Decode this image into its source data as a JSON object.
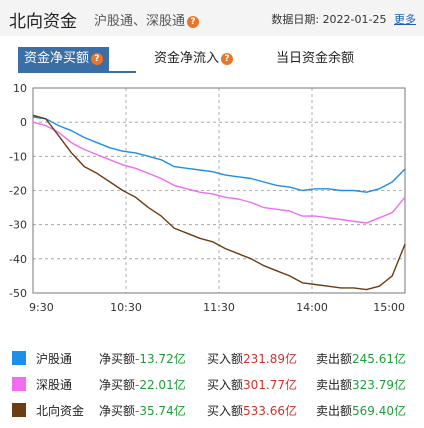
{
  "header": {
    "title": "北向资金",
    "subtitle": "沪股通、深股通",
    "date_label": "数据日期:",
    "date": "2022-01-25",
    "more": "更多"
  },
  "tabs": [
    {
      "label": "资金净买额",
      "active": true
    },
    {
      "label": "资金净流入",
      "active": false
    },
    {
      "label": "当日资金余额",
      "active": false
    }
  ],
  "colors": {
    "shanghai": "#1e8ee8",
    "shenzhen": "#f06cf0",
    "northbound": "#6b3d12",
    "active_tab": "#3a6ea5"
  },
  "chart_data": {
    "type": "line",
    "x_ticks": [
      "9:30",
      "10:30",
      "11:30",
      "14:00",
      "15:00"
    ],
    "y_ticks": [
      10,
      0,
      -10,
      -20,
      -30,
      -40,
      -50
    ],
    "ylim": [
      -50,
      10
    ],
    "unit": "亿",
    "series": [
      {
        "name": "沪股通",
        "color": "#1e8ee8",
        "values": [
          1.5,
          1.0,
          -1.0,
          -2.5,
          -4.5,
          -6.0,
          -7.5,
          -8.5,
          -9.0,
          -10.0,
          -11.0,
          -13.0,
          -13.5,
          -14.0,
          -14.5,
          -15.5,
          -16.0,
          -16.5,
          -17.5,
          -18.5,
          -19.0,
          -20.0,
          -19.5,
          -19.5,
          -20.0,
          -20.0,
          -20.5,
          -19.5,
          -17.5,
          -13.7
        ]
      },
      {
        "name": "深股通",
        "color": "#f06cf0",
        "values": [
          0.0,
          -1.0,
          -3.0,
          -6.0,
          -8.0,
          -9.5,
          -11.0,
          -12.5,
          -13.5,
          -15.0,
          -16.5,
          -18.5,
          -19.5,
          -20.5,
          -21.0,
          -22.0,
          -22.5,
          -23.5,
          -25.0,
          -25.5,
          -26.0,
          -27.5,
          -27.5,
          -28.0,
          -28.5,
          -29.0,
          -29.5,
          -28.0,
          -26.5,
          -22.0
        ]
      },
      {
        "name": "北向资金",
        "color": "#6b3d12",
        "values": [
          2.0,
          1.0,
          -4.0,
          -9.0,
          -13.0,
          -15.0,
          -17.5,
          -20.0,
          -22.0,
          -25.0,
          -27.5,
          -31.0,
          -32.5,
          -34.0,
          -35.0,
          -37.0,
          -38.5,
          -40.0,
          -42.0,
          -43.5,
          -45.0,
          -47.0,
          -47.5,
          -48.0,
          -48.5,
          -48.5,
          -49.0,
          -48.0,
          -45.0,
          -35.7
        ]
      }
    ]
  },
  "legend": [
    {
      "name": "沪股通",
      "color": "#1e8ee8",
      "net_label": "净买额",
      "net": "-13.72亿",
      "buy_label": "买入额",
      "buy": "231.89亿",
      "sell_label": "卖出额",
      "sell": "245.61亿"
    },
    {
      "name": "深股通",
      "color": "#f06cf0",
      "net_label": "净买额",
      "net": "-22.01亿",
      "buy_label": "买入额",
      "buy": "301.77亿",
      "sell_label": "卖出额",
      "sell": "323.79亿"
    },
    {
      "name": "北向资金",
      "color": "#6b3d12",
      "net_label": "净买额",
      "net": "-35.74亿",
      "buy_label": "买入额",
      "buy": "533.66亿",
      "sell_label": "卖出额",
      "sell": "569.40亿"
    }
  ]
}
